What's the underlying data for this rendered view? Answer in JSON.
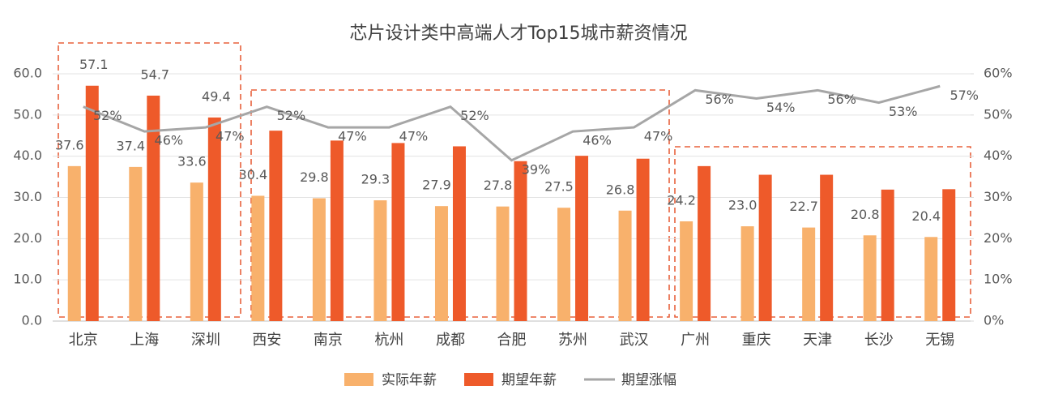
{
  "chart_data": {
    "type": "bar",
    "title": "芯片设计类中高端人才Top15城市薪资情况",
    "categories": [
      "北京",
      "上海",
      "深圳",
      "西安",
      "南京",
      "杭州",
      "成都",
      "合肥",
      "苏州",
      "武汉",
      "广州",
      "重庆",
      "天津",
      "长沙",
      "无锡"
    ],
    "series": [
      {
        "name": "实际年薪",
        "type": "bar",
        "color": "#f8b16c",
        "values": [
          37.6,
          37.4,
          33.6,
          30.4,
          29.8,
          29.3,
          27.9,
          27.8,
          27.5,
          26.8,
          24.2,
          23.0,
          22.7,
          20.8,
          20.4
        ],
        "value_labels": [
          "37.6",
          "37.4",
          "33.6",
          "30.4",
          "29.8",
          "29.3",
          "27.9",
          "27.8",
          "27.5",
          "26.8",
          "24.2",
          "23.0",
          "22.7",
          "20.8",
          "20.4"
        ]
      },
      {
        "name": "期望年薪",
        "type": "bar",
        "color": "#ee5a2a",
        "values": [
          57.1,
          54.7,
          49.4,
          46.2,
          43.8,
          43.2,
          42.4,
          38.8,
          40.1,
          39.4,
          37.6,
          35.5,
          35.5,
          31.9,
          32.0
        ],
        "value_labels": [
          "57.1",
          "54.7",
          "49.4",
          null,
          null,
          null,
          null,
          null,
          null,
          null,
          null,
          null,
          null,
          null,
          null
        ]
      },
      {
        "name": "期望涨幅",
        "type": "line",
        "axis": "y2",
        "color": "#a6a6a6",
        "values": [
          52,
          46,
          47,
          52,
          47,
          47,
          52,
          39,
          46,
          47,
          56,
          54,
          56,
          53,
          57
        ],
        "value_labels": [
          "52%",
          "46%",
          "47%",
          "52%",
          "47%",
          "47%",
          "52%",
          "39%",
          "46%",
          "47%",
          "56%",
          "54%",
          "56%",
          "53%",
          "57%"
        ]
      }
    ],
    "ylim": [
      0,
      60
    ],
    "yticks": [
      {
        "value": 0,
        "label": "0.0"
      },
      {
        "value": 10,
        "label": "10.0"
      },
      {
        "value": 20,
        "label": "20.0"
      },
      {
        "value": 30,
        "label": "30.0"
      },
      {
        "value": 40,
        "label": "40.0"
      },
      {
        "value": 50,
        "label": "50.0"
      },
      {
        "value": 60,
        "label": "60.0"
      }
    ],
    "y2lim": [
      0,
      60
    ],
    "y2ticks": [
      {
        "value": 0,
        "label": "0%"
      },
      {
        "value": 10,
        "label": "10%"
      },
      {
        "value": 20,
        "label": "20%"
      },
      {
        "value": 30,
        "label": "30%"
      },
      {
        "value": 40,
        "label": "40%"
      },
      {
        "value": 50,
        "label": "50%"
      },
      {
        "value": 60,
        "label": "60%"
      }
    ],
    "grid": true,
    "legend": "bottom"
  }
}
